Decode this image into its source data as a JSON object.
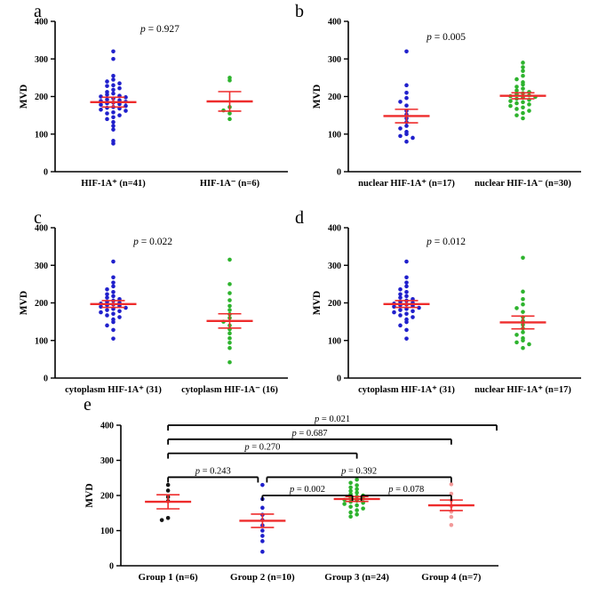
{
  "colors": {
    "blue": "#2020cc",
    "green": "#2db32d",
    "red": "#ee2c2c",
    "black": "#161616",
    "pink": "#f29999",
    "axis": "#000000"
  },
  "chart_data": [
    {
      "id": "a",
      "type": "scatter",
      "letter": "a",
      "p_label": "p = 0.927",
      "p_pos": {
        "x": 0.45,
        "y": 372
      },
      "ylabel": "MVD",
      "ylim": [
        0,
        400
      ],
      "yticks": [
        0,
        100,
        200,
        300,
        400
      ],
      "groups": [
        {
          "label": "HIF-1A⁺ (n=41)",
          "color": "blue",
          "n": 41,
          "mean": 185,
          "sem": 13,
          "values": [
            320,
            300,
            255,
            245,
            240,
            235,
            230,
            228,
            222,
            218,
            212,
            208,
            205,
            202,
            200,
            198,
            195,
            192,
            190,
            188,
            186,
            184,
            182,
            180,
            178,
            175,
            172,
            170,
            168,
            165,
            162,
            158,
            155,
            150,
            145,
            140,
            132,
            122,
            112,
            82,
            75
          ]
        },
        {
          "label": "HIF-1A⁻ (n=6)",
          "color": "green",
          "n": 6,
          "mean": 187,
          "sem": 26,
          "values": [
            250,
            243,
            172,
            163,
            155,
            140
          ]
        }
      ]
    },
    {
      "id": "b",
      "type": "scatter",
      "letter": "b",
      "p_label": "p = 0.005",
      "p_pos": {
        "x": 0.42,
        "y": 350
      },
      "ylabel": "MVD",
      "ylim": [
        0,
        400
      ],
      "yticks": [
        0,
        100,
        200,
        300,
        400
      ],
      "groups": [
        {
          "label": "nuclear HIF-1A⁺ (n=17)",
          "color": "blue",
          "n": 17,
          "mean": 148,
          "sem": 18,
          "values": [
            320,
            230,
            210,
            196,
            186,
            176,
            162,
            152,
            142,
            132,
            122,
            115,
            106,
            100,
            95,
            90,
            80
          ]
        },
        {
          "label": "nuclear HIF-1A⁻ (n=30)",
          "color": "green",
          "n": 30,
          "mean": 202,
          "sem": 8,
          "values": [
            290,
            278,
            268,
            255,
            246,
            238,
            232,
            226,
            221,
            216,
            212,
            209,
            206,
            203,
            201,
            199,
            197,
            194,
            191,
            188,
            185,
            182,
            179,
            175,
            171,
            167,
            162,
            156,
            150,
            142
          ]
        }
      ]
    },
    {
      "id": "c",
      "type": "scatter",
      "letter": "c",
      "p_label": "p = 0.022",
      "p_pos": {
        "x": 0.42,
        "y": 355
      },
      "ylabel": "MVD",
      "ylim": [
        0,
        400
      ],
      "yticks": [
        0,
        100,
        200,
        300,
        400
      ],
      "groups": [
        {
          "label": "cytoplasm HIF-1A⁺ (31)",
          "color": "blue",
          "n": 31,
          "mean": 197,
          "sem": 9,
          "values": [
            310,
            268,
            254,
            244,
            236,
            229,
            223,
            218,
            214,
            210,
            206,
            203,
            200,
            198,
            196,
            194,
            192,
            190,
            187,
            184,
            181,
            178,
            175,
            171,
            167,
            162,
            156,
            149,
            140,
            128,
            105
          ]
        },
        {
          "label": "cytoplasm HIF-1A⁻ (16)",
          "color": "green",
          "n": 16,
          "mean": 152,
          "sem": 19,
          "values": [
            315,
            250,
            226,
            207,
            192,
            181,
            170,
            160,
            150,
            140,
            130,
            119,
            106,
            94,
            80,
            42
          ]
        }
      ]
    },
    {
      "id": "d",
      "type": "scatter",
      "letter": "d",
      "p_label": "p = 0.012",
      "p_pos": {
        "x": 0.42,
        "y": 355
      },
      "ylabel": "MVD",
      "ylim": [
        0,
        400
      ],
      "yticks": [
        0,
        100,
        200,
        300,
        400
      ],
      "groups": [
        {
          "label": "cytoplasm HIF-1A⁺ (31)",
          "color": "blue",
          "n": 31,
          "mean": 197,
          "sem": 9,
          "values": [
            310,
            268,
            254,
            244,
            236,
            229,
            223,
            218,
            214,
            210,
            206,
            203,
            200,
            198,
            196,
            194,
            192,
            190,
            187,
            184,
            181,
            178,
            175,
            171,
            167,
            162,
            156,
            149,
            140,
            128,
            105
          ]
        },
        {
          "label": "nuclear HIF-1A⁺ (n=17)",
          "color": "green",
          "n": 17,
          "mean": 148,
          "sem": 17,
          "values": [
            320,
            230,
            210,
            196,
            186,
            176,
            162,
            152,
            142,
            132,
            122,
            115,
            106,
            100,
            95,
            90,
            80
          ]
        }
      ]
    },
    {
      "id": "e",
      "type": "scatter",
      "letter": "e",
      "layout": "wide",
      "ylabel": "MVD",
      "ylim": [
        0,
        400
      ],
      "yticks": [
        0,
        100,
        200,
        300,
        400
      ],
      "groups": [
        {
          "label": "Group 1 (n=6)",
          "color": "black",
          "n": 6,
          "mean": 182,
          "sem": 20,
          "values": [
            230,
            214,
            196,
            184,
            136,
            130
          ]
        },
        {
          "label": "Group 2 (n=10)",
          "color": "blue",
          "n": 10,
          "mean": 128,
          "sem": 19,
          "values": [
            230,
            190,
            165,
            145,
            130,
            115,
            100,
            85,
            70,
            40
          ]
        },
        {
          "label": "Group 3 (n=24)",
          "color": "green",
          "n": 24,
          "mean": 190,
          "sem": 7,
          "values": [
            245,
            236,
            229,
            223,
            218,
            213,
            208,
            204,
            200,
            197,
            194,
            191,
            188,
            185,
            182,
            179,
            176,
            172,
            168,
            163,
            158,
            152,
            146,
            140
          ]
        },
        {
          "label": "Group 4 (n=7)",
          "color": "pink",
          "n": 7,
          "mean": 172,
          "sem": 15,
          "values": [
            232,
            205,
            186,
            170,
            154,
            139,
            116
          ]
        }
      ],
      "comparisons": [
        {
          "from": 0,
          "to": 3,
          "y": 400,
          "label": "p = 0.021",
          "to_edge": true
        },
        {
          "from": 0,
          "to": 3,
          "y": 360,
          "label": "p = 0.687"
        },
        {
          "from": 0,
          "to": 2,
          "y": 320,
          "label": "p = 0.270"
        },
        {
          "from": 0,
          "to": 1,
          "y": 252,
          "label": "p = 0.243",
          "x2_off": -5
        },
        {
          "from": 1,
          "to": 3,
          "y": 252,
          "label": "p = 0.392",
          "x1_off": 5
        },
        {
          "from": 1,
          "to": 2,
          "y": 200,
          "label": "p = 0.002",
          "x2_off": -5
        },
        {
          "from": 2,
          "to": 3,
          "y": 200,
          "label": "p = 0.078",
          "x1_off": 5
        }
      ]
    }
  ]
}
